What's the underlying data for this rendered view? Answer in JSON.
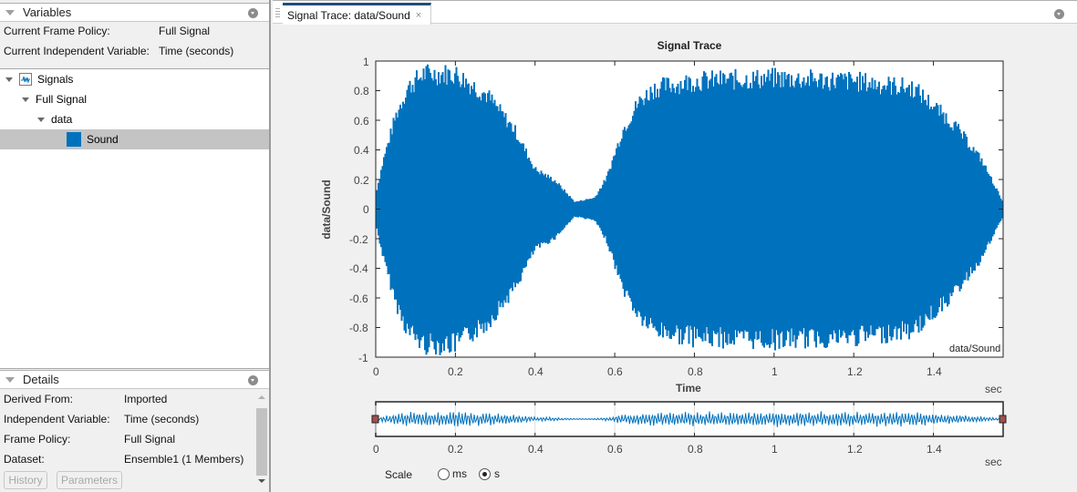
{
  "variables_panel": {
    "title": "Variables",
    "frame_policy_label": "Current Frame Policy:",
    "frame_policy_value": "Full Signal",
    "indep_var_label": "Current Independent Variable:",
    "indep_var_value": "Time (seconds)",
    "tree": [
      {
        "label": "Signals",
        "level": 0,
        "icon": "signal-icon",
        "expanded": true
      },
      {
        "label": "Full Signal",
        "level": 1,
        "expanded": true
      },
      {
        "label": "data",
        "level": 2,
        "expanded": true
      },
      {
        "label": "Sound",
        "level": 3,
        "icon": "color-swatch",
        "selected": true,
        "color": "#0072bd"
      }
    ]
  },
  "details_panel": {
    "title": "Details",
    "rows": [
      {
        "key": "Derived From:",
        "value": "Imported"
      },
      {
        "key": "Independent Variable:",
        "value": "Time (seconds)"
      },
      {
        "key": "Frame Policy:",
        "value": "Full Signal"
      },
      {
        "key": "Dataset:",
        "value": "Ensemble1 (1 Members)"
      }
    ],
    "buttons": {
      "history": "History",
      "parameters": "Parameters"
    }
  },
  "document": {
    "tab_label": "Signal Trace: data/Sound",
    "tab_close": "×"
  },
  "scale_control": {
    "label": "Scale",
    "options": [
      "ms",
      "s"
    ],
    "selected": "s"
  },
  "colors": {
    "signal": "#0072bd",
    "tab_accent": "#1f4e79",
    "panner_handle": "#a05050"
  },
  "chart_data": [
    {
      "type": "line",
      "title": "Signal Trace",
      "xlabel": "Time",
      "ylabel": "data/Sound",
      "x_unit": "sec",
      "legend": "data/Sound",
      "xlim": [
        0,
        1.575
      ],
      "ylim": [
        -1,
        1
      ],
      "xticks": [
        "0",
        "0.2",
        "0.4",
        "0.6",
        "0.8",
        "1",
        "1.2",
        "1.4"
      ],
      "yticks": [
        "1",
        "0.8",
        "0.6",
        "0.4",
        "0.2",
        "0",
        "-0.2",
        "-0.4",
        "-0.6",
        "-0.8",
        "-1"
      ],
      "envelope": {
        "x": [
          0,
          0.02,
          0.05,
          0.08,
          0.12,
          0.2,
          0.28,
          0.35,
          0.4,
          0.45,
          0.5,
          0.55,
          0.58,
          0.62,
          0.66,
          0.7,
          0.8,
          1.0,
          1.2,
          1.35,
          1.45,
          1.52,
          1.575
        ],
        "upper": [
          0.1,
          0.35,
          0.65,
          0.85,
          0.95,
          0.95,
          0.8,
          0.55,
          0.28,
          0.2,
          0.05,
          0.08,
          0.22,
          0.55,
          0.75,
          0.85,
          0.9,
          0.92,
          0.9,
          0.85,
          0.6,
          0.35,
          0.05
        ]
      },
      "grid": false
    },
    {
      "type": "line",
      "title": "Panner overview",
      "x_unit": "sec",
      "xlim": [
        0,
        1.575
      ],
      "xticks": [
        "0",
        "0.2",
        "0.4",
        "0.6",
        "0.8",
        "1",
        "1.2",
        "1.4"
      ]
    }
  ]
}
